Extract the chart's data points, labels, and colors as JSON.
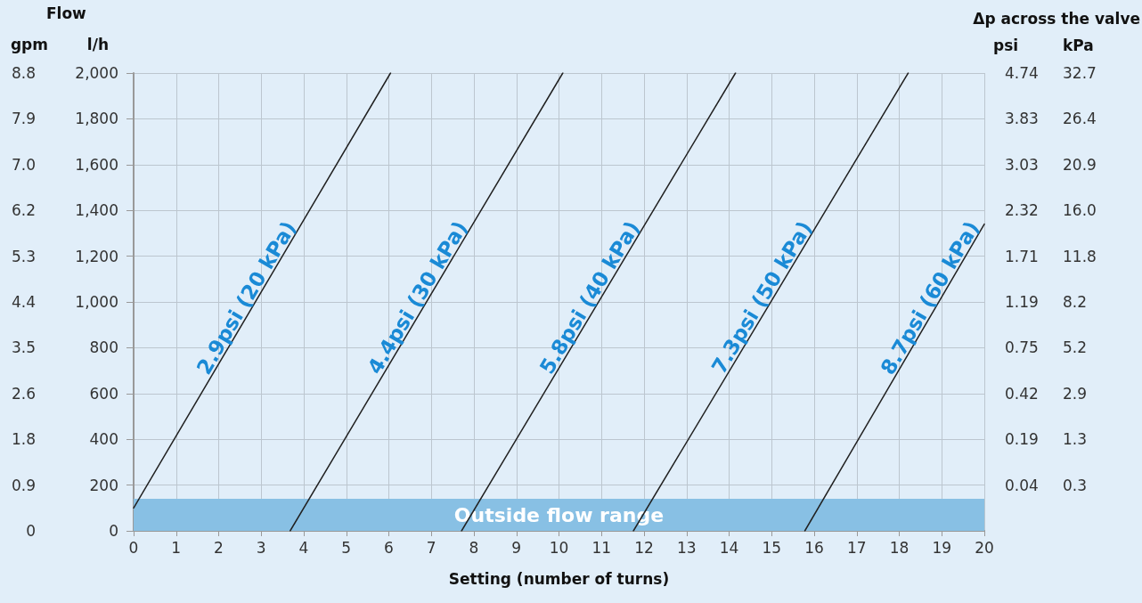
{
  "chart_data": {
    "type": "line",
    "xlabel": "Setting (number of turns)",
    "ylabel": "l/h",
    "y2label": "gpm",
    "annotations": [
      "Flow",
      "Δp across the valve",
      "psi",
      "kPa",
      "0.04",
      "0.19",
      "0.42",
      "0.75",
      "1.19",
      "1.71",
      "2.32",
      "3.03",
      "3.83",
      "4.74",
      "0.3",
      "1.3",
      "2.9",
      "5.2",
      "8.2",
      "11.8",
      "16.0",
      "20.9",
      "26.4",
      "32.7"
    ],
    "xlim": [
      0,
      20
    ],
    "xticks": [
      0,
      1,
      2,
      3,
      4,
      5,
      6,
      7,
      8,
      9,
      10,
      11,
      12,
      13,
      14,
      15,
      16,
      17,
      18,
      19,
      20
    ],
    "ylim": [
      0,
      2000
    ],
    "yticks": [
      0,
      200,
      400,
      600,
      800,
      {
        "value": 1000,
        "label": "1,000"
      },
      {
        "value": 1200,
        "label": "1,200"
      },
      {
        "value": 1400,
        "label": "1,400"
      },
      {
        "value": 1600,
        "label": "1,600"
      },
      {
        "value": 1800,
        "label": "1,800"
      },
      {
        "value": 2000,
        "label": "2,000"
      }
    ],
    "y2lim": [
      0,
      8.8
    ],
    "y2ticks": [
      0,
      {
        "value": 0.88,
        "label": "0.9"
      },
      {
        "value": 1.76,
        "label": "1.8"
      },
      {
        "value": 2.64,
        "label": "2.6"
      },
      {
        "value": 3.52,
        "label": "3.5"
      },
      4.4,
      {
        "value": 5.28,
        "label": "5.3"
      },
      {
        "value": 6.16,
        "label": "6.2"
      },
      {
        "value": 7.04,
        "label": "7.0"
      },
      {
        "value": 7.92,
        "label": "7.9"
      },
      8.8
    ],
    "grid": true,
    "marker": "none",
    "line_style": "solid",
    "bands": [
      {
        "axis": "y",
        "from": 0,
        "to": 140,
        "label": "Outside flow range",
        "color": "#88c0e4"
      }
    ],
    "series": [
      {
        "name": "2.9psi (20 kPa)",
        "color": "#222222",
        "x": [
          0,
          6.04
        ],
        "values": [
          100,
          2000
        ]
      },
      {
        "name": "4.4psi (30 kPa)",
        "color": "#222222",
        "x": [
          3.68,
          10.09
        ],
        "values": [
          0,
          2000
        ]
      },
      {
        "name": "5.8psi (40 kPa)",
        "color": "#222222",
        "x": [
          7.71,
          14.15
        ],
        "values": [
          0,
          2000
        ]
      },
      {
        "name": "7.3psi (50 kPa)",
        "color": "#222222",
        "x": [
          11.75,
          18.21
        ],
        "values": [
          0,
          2000
        ]
      },
      {
        "name": "8.7psi (60 kPa)",
        "color": "#222222",
        "x": [
          15.78,
          20
        ],
        "values": [
          0,
          1340
        ]
      }
    ]
  }
}
